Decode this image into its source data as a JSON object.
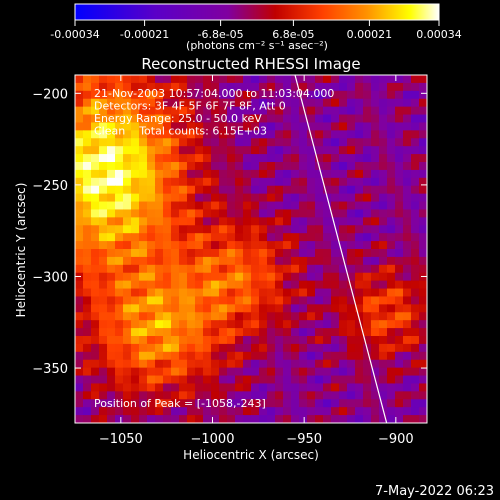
{
  "colorbar": {
    "tick_labels": [
      "-0.00034",
      "-0.00021",
      "-6.8e-05",
      "6.8e-05",
      "0.00021",
      "0.00034"
    ],
    "tick_values": [
      -0.00034,
      -0.00021,
      -6.8e-05,
      6.8e-05,
      0.00021,
      0.00034
    ],
    "range": [
      -0.00034,
      0.00034
    ],
    "units_label": "(photons cm⁻² s⁻¹ asec⁻²)",
    "colormap": [
      "#0000ff",
      "#5a00c8",
      "#8000a0",
      "#c00000",
      "#ff4000",
      "#ff9000",
      "#ffff00",
      "#ffffff"
    ]
  },
  "chart_data": {
    "type": "heatmap",
    "title": "Reconstructed RHESSI Image",
    "xlabel": "Heliocentric X (arcsec)",
    "ylabel": "Heliocentric Y (arcsec)",
    "xlim": [
      -1075,
      -883
    ],
    "ylim": [
      -380,
      -190
    ],
    "xticks": [
      -1050,
      -1000,
      -950,
      -900
    ],
    "yticks": [
      -350,
      -300,
      -250,
      -200
    ],
    "xtick_labels": [
      "−1050",
      "−1000",
      "−950",
      "−900"
    ],
    "ytick_labels": [
      "−350",
      "−300",
      "−250",
      "−200"
    ],
    "info_lines": [
      "21-Nov-2003 10:57:04.000 to 11:03:04.000",
      "Detectors: 3F 4F 5F 6F 7F 8F, Att 0",
      "Energy Range: 25.0 - 50.0 keV",
      "Clean    Total counts: 6.15E+03"
    ],
    "peak_label": "Position of Peak = [-1058,-243]",
    "peak": [
      -1058,
      -243
    ],
    "limb_line": [
      [
        -955,
        -190
      ],
      [
        -905,
        -380
      ]
    ],
    "grid": false
  },
  "footer": {
    "timestamp": "7-May-2022 06:23"
  }
}
